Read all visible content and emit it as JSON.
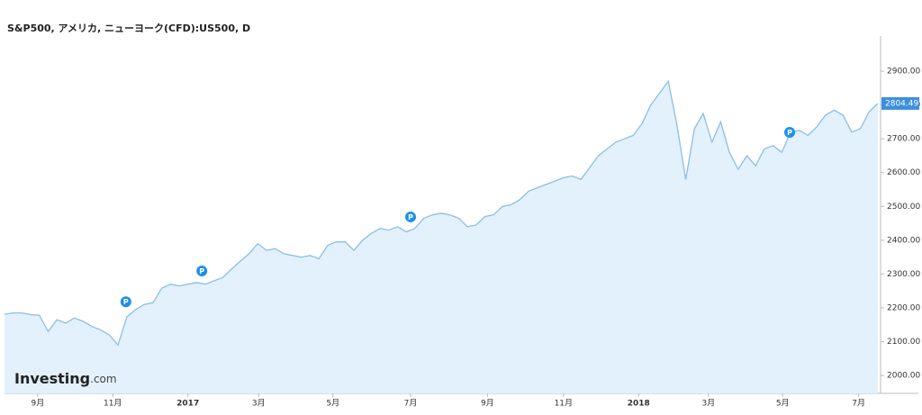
{
  "chart_data": {
    "type": "area",
    "title": "S&P500, アメリカ, ニューヨーク(CFD):US500, D",
    "color": "#8dbde9",
    "fill": "#e2f1fb",
    "xlim": [
      0,
      100
    ],
    "ylim": [
      1947,
      3004
    ],
    "values": [
      2181,
      2185,
      2185,
      2180,
      2178,
      2130,
      2165,
      2155,
      2170,
      2160,
      2145,
      2135,
      2120,
      2090,
      2173,
      2195,
      2210,
      2215,
      2258,
      2270,
      2265,
      2270,
      2275,
      2270,
      2280,
      2290,
      2315,
      2338,
      2360,
      2390,
      2370,
      2375,
      2360,
      2355,
      2350,
      2355,
      2345,
      2385,
      2395,
      2395,
      2370,
      2400,
      2420,
      2435,
      2430,
      2440,
      2425,
      2435,
      2465,
      2475,
      2480,
      2475,
      2465,
      2440,
      2445,
      2470,
      2475,
      2500,
      2505,
      2520,
      2545,
      2555,
      2565,
      2575,
      2585,
      2590,
      2580,
      2615,
      2650,
      2670,
      2690,
      2700,
      2710,
      2745,
      2800,
      2835,
      2870,
      2740,
      2580,
      2730,
      2775,
      2690,
      2750,
      2660,
      2610,
      2650,
      2620,
      2670,
      2680,
      2660,
      2720,
      2725,
      2710,
      2735,
      2770,
      2785,
      2770,
      2720,
      2730,
      2780,
      2804.49
    ],
    "yticks": [
      {
        "value": 2000,
        "label": "2000.00"
      },
      {
        "value": 2100,
        "label": "2100.00"
      },
      {
        "value": 2200,
        "label": "2200.00"
      },
      {
        "value": 2300,
        "label": "2300.00"
      },
      {
        "value": 2400,
        "label": "2400.00"
      },
      {
        "value": 2500,
        "label": "2500.00"
      },
      {
        "value": 2600,
        "label": "2600.00"
      },
      {
        "value": 2700,
        "label": "2700.00"
      },
      {
        "value": 2800,
        "label": "2800.00"
      },
      {
        "value": 2900,
        "label": "2900.00"
      }
    ],
    "xticks": [
      {
        "value": 3.8,
        "label": "9月"
      },
      {
        "value": 12.4,
        "label": "11月"
      },
      {
        "value": 21.0,
        "label": "2017"
      },
      {
        "value": 29.1,
        "label": "3月"
      },
      {
        "value": 37.6,
        "label": "5月"
      },
      {
        "value": 46.5,
        "label": "7月"
      },
      {
        "value": 55.3,
        "label": "9月"
      },
      {
        "value": 64.0,
        "label": "11月"
      },
      {
        "value": 72.6,
        "label": "2018"
      },
      {
        "value": 80.6,
        "label": "3月"
      },
      {
        "value": 89.1,
        "label": "5月"
      },
      {
        "value": 97.8,
        "label": "7月"
      }
    ],
    "markers": [
      {
        "x": 13.9,
        "y": 2218,
        "label": "P"
      },
      {
        "x": 22.6,
        "y": 2309,
        "label": "P"
      },
      {
        "x": 46.5,
        "y": 2469,
        "label": "P"
      },
      {
        "x": 89.9,
        "y": 2719,
        "label": "P"
      }
    ],
    "logo": {
      "name": "Investing",
      "suffix": ".com"
    }
  }
}
